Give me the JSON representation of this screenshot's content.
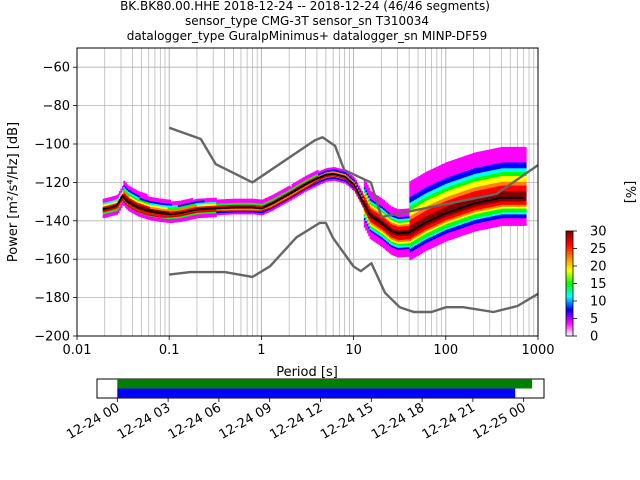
{
  "header": {
    "title_line1": "BK.BK80.00.HHE   2018-12-24 -- 2018-12-24  (46/46 segments)",
    "title_line2": "sensor_type CMG-3T sensor_sn T310034",
    "title_line3": "datalogger_type GuralpMinimus+ datalogger_sn MINP-DF59"
  },
  "chart_data": {
    "type": "heatmap",
    "xlabel": "Period [s]",
    "ylabel": "Power [m²/s⁴/Hz] [dB]",
    "xscale": "log",
    "xlim": [
      0.01,
      1000
    ],
    "ylim": [
      -200,
      -50
    ],
    "xticks": [
      {
        "value": 0.01,
        "label": "0.01"
      },
      {
        "value": 0.1,
        "label": "0.1"
      },
      {
        "value": 1,
        "label": "1"
      },
      {
        "value": 10,
        "label": "10"
      },
      {
        "value": 100,
        "label": "100"
      },
      {
        "value": 1000,
        "label": "1000"
      }
    ],
    "yticks": [
      {
        "value": -60,
        "label": "−60"
      },
      {
        "value": -80,
        "label": "−80"
      },
      {
        "value": -100,
        "label": "−100"
      },
      {
        "value": -120,
        "label": "−120"
      },
      {
        "value": -140,
        "label": "−140"
      },
      {
        "value": -160,
        "label": "−160"
      },
      {
        "value": -180,
        "label": "−180"
      },
      {
        "value": -200,
        "label": "−200"
      }
    ],
    "grid": true,
    "series": [
      {
        "role": "high noise model",
        "color": "#666666",
        "x": [
          0.1,
          0.22,
          0.32,
          0.8,
          3.8,
          4.6,
          6.3,
          7.9,
          15.4,
          20,
          354.8,
          1000
        ],
        "y": [
          -91.5,
          -97.4,
          -110.5,
          -120,
          -98,
          -96.5,
          -101,
          -113.5,
          -120,
          -138,
          -126,
          -111
        ]
      },
      {
        "role": "low noise model",
        "color": "#666666",
        "x": [
          0.1,
          0.17,
          0.4,
          0.8,
          1.24,
          2.4,
          4.3,
          5.0,
          6.0,
          10,
          12,
          15.6,
          21.9,
          31.6,
          45,
          70,
          101,
          154,
          328,
          600,
          1000
        ],
        "y": [
          -168,
          -166.7,
          -166.7,
          -169.2,
          -163.7,
          -148.6,
          -141.1,
          -141.1,
          -149.0,
          -163.8,
          -166.2,
          -162.1,
          -177.5,
          -185,
          -187.5,
          -187.5,
          -185,
          -185,
          -187.5,
          -184.4,
          -178
        ]
      },
      {
        "role": "mean",
        "color": "#000000",
        "x": [
          0.019,
          0.023,
          0.027,
          0.031,
          0.035,
          0.045,
          0.06,
          0.08,
          0.1,
          0.13,
          0.2,
          0.3,
          0.5,
          0.8,
          1.0,
          1.3,
          2,
          3,
          4,
          5,
          6,
          8,
          10,
          12,
          15,
          20,
          25,
          30,
          40,
          60,
          100,
          200,
          400,
          700
        ],
        "y": [
          -134,
          -133,
          -132,
          -127,
          -130,
          -133,
          -135,
          -136,
          -136.5,
          -136,
          -134,
          -133.5,
          -133,
          -133,
          -133.5,
          -131,
          -126,
          -121,
          -118,
          -116,
          -115.5,
          -117,
          -121,
          -128,
          -137,
          -141,
          -145,
          -146.5,
          -146,
          -141,
          -136,
          -131,
          -128,
          -128
        ]
      },
      {
        "role": "mode",
        "color": "#cc0000",
        "x": [
          0.019,
          0.023,
          0.027,
          0.031,
          0.035,
          0.045,
          0.06,
          0.08,
          0.1,
          0.13,
          0.2,
          0.3,
          0.5,
          0.8,
          1.0,
          1.3,
          2,
          3,
          4,
          5,
          6,
          8,
          10,
          12,
          15,
          20,
          25,
          30,
          40,
          60,
          100,
          200,
          400,
          700
        ],
        "y": [
          -135,
          -134,
          -133,
          -129,
          -132,
          -135,
          -137,
          -138,
          -138,
          -137.5,
          -135.5,
          -135,
          -135,
          -135,
          -135,
          -133,
          -128,
          -123,
          -119.5,
          -117,
          -116.5,
          -118,
          -122,
          -130,
          -139,
          -143,
          -147,
          -149,
          -148.5,
          -143,
          -138,
          -133,
          -130,
          -130
        ]
      }
    ],
    "colorbar": {
      "label": "[%]",
      "ticks": [
        {
          "value": 0,
          "label": "0"
        },
        {
          "value": 5,
          "label": "5"
        },
        {
          "value": 10,
          "label": "10"
        },
        {
          "value": 15,
          "label": "15"
        },
        {
          "value": 20,
          "label": "20"
        },
        {
          "value": 25,
          "label": "25"
        },
        {
          "value": 30,
          "label": "30"
        }
      ],
      "range": [
        0,
        30
      ],
      "colors": [
        "#ffffff",
        "#ff00ff",
        "#0000ff",
        "#00ffff",
        "#00ff00",
        "#ffff00",
        "#ff8000",
        "#ff0000",
        "#800000"
      ]
    }
  },
  "timeline": {
    "ticks": [
      {
        "label": "12-24 00",
        "hours": 0
      },
      {
        "label": "12-24 03",
        "hours": 3
      },
      {
        "label": "12-24 06",
        "hours": 6
      },
      {
        "label": "12-24 09",
        "hours": 9
      },
      {
        "label": "12-24 12",
        "hours": 12
      },
      {
        "label": "12-24 15",
        "hours": 15
      },
      {
        "label": "12-24 18",
        "hours": 18
      },
      {
        "label": "12-24 21",
        "hours": 21
      },
      {
        "label": "12-25 00",
        "hours": 24
      }
    ],
    "range_hours": [
      -1.2,
      25.2
    ],
    "bars": [
      {
        "role": "data coverage",
        "color": "#008000",
        "start_hours": 0,
        "end_hours": 24.5
      },
      {
        "role": "psd segments",
        "color": "#0000ff",
        "start_hours": 0,
        "end_hours": 23.5
      }
    ]
  }
}
